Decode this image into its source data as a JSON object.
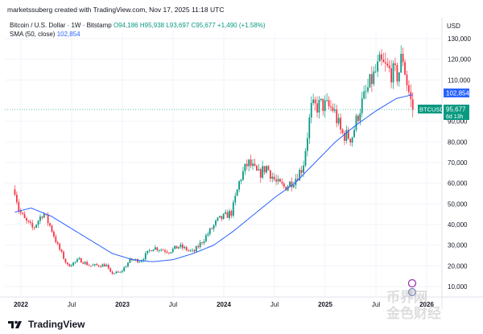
{
  "header": {
    "credit": "marketssuberg created with TradingView.com, Nov 17, 2025 11:18 UTC"
  },
  "legend": {
    "symbol": "Bitcoin / U.S. Dollar · 1W · Bitstamp",
    "ohlc": "O94,186 H95,938 L93,697 C95,677 +1,490 (+1.58%)",
    "sma_label": "SMA (50, close)",
    "sma_value": "102,854"
  },
  "axis": {
    "currency": "USD"
  },
  "badges": {
    "sma": "102,854",
    "ticker": "BTCUSD",
    "price": "95,677",
    "countdown": "6d 13h"
  },
  "footer": {
    "brand": "TradingView"
  },
  "watermark": {
    "line1": "币界网",
    "line2": "金色财经"
  },
  "colors": {
    "up": "#089981",
    "down": "#f23645",
    "sma": "#2962ff",
    "price_badge": "#089981",
    "sma_badge": "#2962ff"
  },
  "chart_data": {
    "type": "candlestick",
    "symbol": "BTCUSD",
    "interval": "1W",
    "y_ticks": [
      10000,
      20000,
      30000,
      40000,
      50000,
      60000,
      70000,
      80000,
      90000,
      110000,
      120000,
      130000
    ],
    "x_ticks": [
      {
        "label": "2022",
        "bold": true,
        "t": 0.0
      },
      {
        "label": "Jul",
        "bold": false,
        "t": 0.5
      },
      {
        "label": "2023",
        "bold": true,
        "t": 1.0
      },
      {
        "label": "Jul",
        "bold": false,
        "t": 1.5
      },
      {
        "label": "2024",
        "bold": true,
        "t": 2.0
      },
      {
        "label": "Jul",
        "bold": false,
        "t": 2.5
      },
      {
        "label": "2025",
        "bold": true,
        "t": 3.0
      },
      {
        "label": "Jul",
        "bold": false,
        "t": 3.5
      },
      {
        "label": "2026",
        "bold": true,
        "t": 4.0
      }
    ],
    "price_keypoints": [
      {
        "t": -0.06,
        "p": 57000
      },
      {
        "t": -0.02,
        "p": 47000
      },
      {
        "t": 0.04,
        "p": 42000
      },
      {
        "t": 0.12,
        "p": 38000
      },
      {
        "t": 0.22,
        "p": 46000
      },
      {
        "t": 0.3,
        "p": 38000
      },
      {
        "t": 0.36,
        "p": 30000
      },
      {
        "t": 0.46,
        "p": 20000
      },
      {
        "t": 0.58,
        "p": 23000
      },
      {
        "t": 0.68,
        "p": 20000
      },
      {
        "t": 0.84,
        "p": 20500
      },
      {
        "t": 0.88,
        "p": 16500
      },
      {
        "t": 0.98,
        "p": 16700
      },
      {
        "t": 1.08,
        "p": 23000
      },
      {
        "t": 1.18,
        "p": 22500
      },
      {
        "t": 1.3,
        "p": 29000
      },
      {
        "t": 1.46,
        "p": 27000
      },
      {
        "t": 1.56,
        "p": 29500
      },
      {
        "t": 1.7,
        "p": 26500
      },
      {
        "t": 1.82,
        "p": 34000
      },
      {
        "t": 1.94,
        "p": 42000
      },
      {
        "t": 2.08,
        "p": 46000
      },
      {
        "t": 2.16,
        "p": 62000
      },
      {
        "t": 2.24,
        "p": 70000
      },
      {
        "t": 2.34,
        "p": 64000
      },
      {
        "t": 2.42,
        "p": 68000
      },
      {
        "t": 2.52,
        "p": 60000
      },
      {
        "t": 2.6,
        "p": 58000
      },
      {
        "t": 2.7,
        "p": 62000
      },
      {
        "t": 2.78,
        "p": 68000
      },
      {
        "t": 2.86,
        "p": 96000
      },
      {
        "t": 2.96,
        "p": 98000
      },
      {
        "t": 3.08,
        "p": 96000
      },
      {
        "t": 3.16,
        "p": 84000
      },
      {
        "t": 3.26,
        "p": 82000
      },
      {
        "t": 3.34,
        "p": 96000
      },
      {
        "t": 3.44,
        "p": 108000
      },
      {
        "t": 3.54,
        "p": 118000
      },
      {
        "t": 3.64,
        "p": 114000
      },
      {
        "t": 3.72,
        "p": 112000
      },
      {
        "t": 3.76,
        "p": 123000
      },
      {
        "t": 3.8,
        "p": 110000
      },
      {
        "t": 3.86,
        "p": 95677
      }
    ],
    "sma_keypoints": [
      {
        "t": -0.06,
        "p": 46000
      },
      {
        "t": 0.1,
        "p": 48000
      },
      {
        "t": 0.3,
        "p": 44000
      },
      {
        "t": 0.5,
        "p": 38000
      },
      {
        "t": 0.7,
        "p": 32000
      },
      {
        "t": 0.9,
        "p": 26000
      },
      {
        "t": 1.1,
        "p": 23000
      },
      {
        "t": 1.3,
        "p": 22000
      },
      {
        "t": 1.5,
        "p": 23000
      },
      {
        "t": 1.7,
        "p": 26000
      },
      {
        "t": 1.9,
        "p": 30000
      },
      {
        "t": 2.1,
        "p": 37000
      },
      {
        "t": 2.3,
        "p": 45000
      },
      {
        "t": 2.5,
        "p": 53000
      },
      {
        "t": 2.7,
        "p": 60000
      },
      {
        "t": 2.9,
        "p": 70000
      },
      {
        "t": 3.1,
        "p": 80000
      },
      {
        "t": 3.3,
        "p": 88000
      },
      {
        "t": 3.5,
        "p": 95000
      },
      {
        "t": 3.7,
        "p": 101000
      },
      {
        "t": 3.86,
        "p": 102854
      }
    ],
    "last_close": 95677,
    "sma_last": 102854
  }
}
